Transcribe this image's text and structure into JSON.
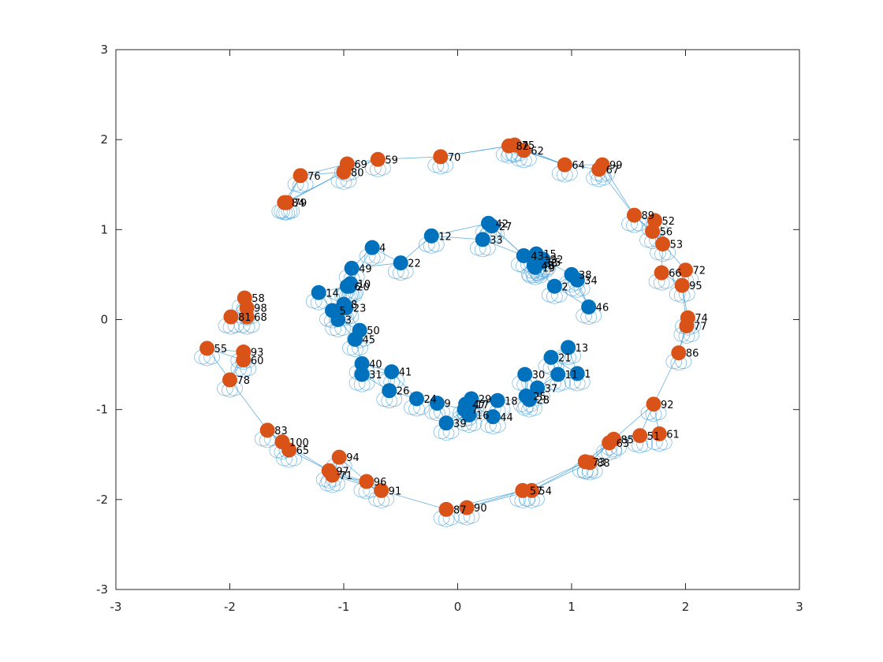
{
  "chart_data": {
    "type": "scatter",
    "title": "",
    "xlabel": "",
    "ylabel": "",
    "xlim": [
      -3,
      3
    ],
    "ylim": [
      -3,
      3
    ],
    "xticks": [
      "-3",
      "-2",
      "-1",
      "0",
      "1",
      "2",
      "3"
    ],
    "yticks": [
      "-3",
      "-2",
      "-1",
      "0",
      "1",
      "2",
      "3"
    ],
    "grid": false,
    "legend": "none",
    "colors": {
      "class1": "#0072BD",
      "class2": "#D95319",
      "edges": "#4DA3D9",
      "axes": "#262626"
    },
    "series": [
      {
        "class": "class1",
        "points": [
          {
            "id": 1,
            "x": 1.05,
            "y": -0.6
          },
          {
            "id": 2,
            "x": 0.85,
            "y": 0.37
          },
          {
            "id": 3,
            "x": -1.05,
            "y": 0.0
          },
          {
            "id": 4,
            "x": -0.75,
            "y": 0.8
          },
          {
            "id": 5,
            "x": -1.1,
            "y": 0.1
          },
          {
            "id": 6,
            "x": -0.97,
            "y": 0.37
          },
          {
            "id": 7,
            "x": 0.06,
            "y": -1.0
          },
          {
            "id": 8,
            "x": -1.0,
            "y": 0.17
          },
          {
            "id": 9,
            "x": -0.18,
            "y": -0.93
          },
          {
            "id": 10,
            "x": -0.94,
            "y": 0.4
          },
          {
            "id": 11,
            "x": 0.88,
            "y": -0.61
          },
          {
            "id": 12,
            "x": -0.23,
            "y": 0.93
          },
          {
            "id": 13,
            "x": 0.97,
            "y": -0.31
          },
          {
            "id": 14,
            "x": -1.22,
            "y": 0.3
          },
          {
            "id": 15,
            "x": 0.69,
            "y": 0.73
          },
          {
            "id": 16,
            "x": 0.1,
            "y": -1.06
          },
          {
            "id": 17,
            "x": 0.1,
            "y": -0.94
          },
          {
            "id": 18,
            "x": 0.35,
            "y": -0.9
          },
          {
            "id": 19,
            "x": 0.68,
            "y": 0.58
          },
          {
            "id": 20,
            "x": -0.95,
            "y": 0.37
          },
          {
            "id": 21,
            "x": 0.82,
            "y": -0.42
          },
          {
            "id": 22,
            "x": -0.5,
            "y": 0.63
          },
          {
            "id": 23,
            "x": -0.98,
            "y": 0.13
          },
          {
            "id": 24,
            "x": -0.36,
            "y": -0.88
          },
          {
            "id": 25,
            "x": 0.6,
            "y": -0.85
          },
          {
            "id": 26,
            "x": -0.6,
            "y": -0.79
          },
          {
            "id": 27,
            "x": 0.3,
            "y": 1.04
          },
          {
            "id": 28,
            "x": 0.63,
            "y": -0.89
          },
          {
            "id": 29,
            "x": 0.12,
            "y": -0.88
          },
          {
            "id": 30,
            "x": 0.59,
            "y": -0.61
          },
          {
            "id": 31,
            "x": -0.84,
            "y": -0.61
          },
          {
            "id": 32,
            "x": 0.75,
            "y": 0.67
          },
          {
            "id": 33,
            "x": 0.22,
            "y": 0.89
          },
          {
            "id": 34,
            "x": 1.05,
            "y": 0.44
          },
          {
            "id": 35,
            "x": 0.73,
            "y": 0.64
          },
          {
            "id": 36,
            "x": 0.7,
            "y": 0.63
          },
          {
            "id": 37,
            "x": 0.7,
            "y": -0.76
          },
          {
            "id": 38,
            "x": 1.0,
            "y": 0.5
          },
          {
            "id": 39,
            "x": -0.1,
            "y": -1.15
          },
          {
            "id": 40,
            "x": -0.84,
            "y": -0.49
          },
          {
            "id": 41,
            "x": -0.58,
            "y": -0.58
          },
          {
            "id": 42,
            "x": 0.27,
            "y": 1.07
          },
          {
            "id": 43,
            "x": 0.58,
            "y": 0.71
          },
          {
            "id": 44,
            "x": 0.31,
            "y": -1.08
          },
          {
            "id": 45,
            "x": -0.9,
            "y": -0.22
          },
          {
            "id": 46,
            "x": 1.15,
            "y": 0.14
          },
          {
            "id": 47,
            "x": 0.07,
            "y": -0.94
          },
          {
            "id": 48,
            "x": 0.67,
            "y": 0.6
          },
          {
            "id": 49,
            "x": -0.93,
            "y": 0.57
          },
          {
            "id": 50,
            "x": -0.86,
            "y": -0.12
          }
        ]
      },
      {
        "class": "class2",
        "points": [
          {
            "id": 51,
            "x": 1.6,
            "y": -1.29
          },
          {
            "id": 52,
            "x": 1.73,
            "y": 1.1
          },
          {
            "id": 53,
            "x": 1.8,
            "y": 0.84
          },
          {
            "id": 54,
            "x": 0.65,
            "y": -1.9
          },
          {
            "id": 55,
            "x": -2.2,
            "y": -0.32
          },
          {
            "id": 56,
            "x": 1.71,
            "y": 0.98
          },
          {
            "id": 57,
            "x": 0.57,
            "y": -1.9
          },
          {
            "id": 58,
            "x": -1.87,
            "y": 0.24
          },
          {
            "id": 59,
            "x": -0.7,
            "y": 1.78
          },
          {
            "id": 60,
            "x": -1.88,
            "y": -0.45
          },
          {
            "id": 61,
            "x": 1.77,
            "y": -1.27
          },
          {
            "id": 62,
            "x": 0.58,
            "y": 1.88
          },
          {
            "id": 63,
            "x": 1.33,
            "y": -1.37
          },
          {
            "id": 64,
            "x": 0.94,
            "y": 1.72
          },
          {
            "id": 65,
            "x": -1.48,
            "y": -1.45
          },
          {
            "id": 66,
            "x": 1.79,
            "y": 0.52
          },
          {
            "id": 67,
            "x": 1.24,
            "y": 1.67
          },
          {
            "id": 68,
            "x": -1.85,
            "y": 0.03
          },
          {
            "id": 69,
            "x": -0.97,
            "y": 1.73
          },
          {
            "id": 70,
            "x": -0.15,
            "y": 1.81
          },
          {
            "id": 71,
            "x": -1.1,
            "y": -1.73
          },
          {
            "id": 72,
            "x": 2.0,
            "y": 0.55
          },
          {
            "id": 73,
            "x": 1.12,
            "y": -1.58
          },
          {
            "id": 74,
            "x": 2.02,
            "y": 0.02
          },
          {
            "id": 75,
            "x": 0.5,
            "y": 1.94
          },
          {
            "id": 76,
            "x": -1.38,
            "y": 1.6
          },
          {
            "id": 77,
            "x": 2.01,
            "y": -0.07
          },
          {
            "id": 78,
            "x": -2.0,
            "y": -0.67
          },
          {
            "id": 79,
            "x": -1.5,
            "y": 1.3
          },
          {
            "id": 80,
            "x": -1.0,
            "y": 1.64
          },
          {
            "id": 81,
            "x": -1.99,
            "y": 0.03
          },
          {
            "id": 82,
            "x": 0.45,
            "y": 1.93
          },
          {
            "id": 83,
            "x": -1.67,
            "y": -1.23
          },
          {
            "id": 84,
            "x": -1.52,
            "y": 1.3
          },
          {
            "id": 85,
            "x": 1.37,
            "y": -1.33
          },
          {
            "id": 86,
            "x": 1.94,
            "y": -0.37
          },
          {
            "id": 87,
            "x": -0.1,
            "y": -2.11
          },
          {
            "id": 88,
            "x": 1.16,
            "y": -1.59
          },
          {
            "id": 89,
            "x": 1.55,
            "y": 1.16
          },
          {
            "id": 90,
            "x": 0.08,
            "y": -2.09
          },
          {
            "id": 91,
            "x": -0.67,
            "y": -1.9
          },
          {
            "id": 92,
            "x": 1.72,
            "y": -0.94
          },
          {
            "id": 93,
            "x": -1.88,
            "y": -0.36
          },
          {
            "id": 94,
            "x": -1.04,
            "y": -1.53
          },
          {
            "id": 95,
            "x": 1.97,
            "y": 0.38
          },
          {
            "id": 96,
            "x": -0.8,
            "y": -1.8
          },
          {
            "id": 97,
            "x": -1.13,
            "y": -1.68
          },
          {
            "id": 98,
            "x": -1.85,
            "y": 0.13
          },
          {
            "id": 99,
            "x": 1.27,
            "y": 1.72
          },
          {
            "id": 100,
            "x": -1.54,
            "y": -1.36
          }
        ]
      }
    ]
  }
}
